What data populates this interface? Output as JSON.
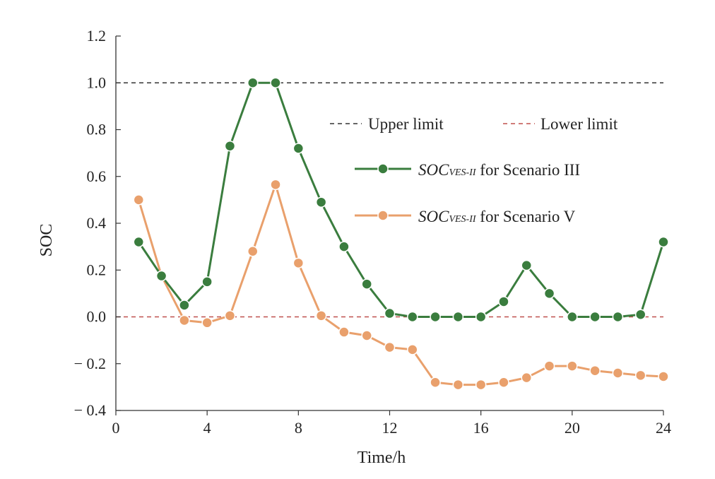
{
  "chart_data": {
    "type": "line",
    "xlabel": "Time/h",
    "ylabel": "SOC",
    "xlim": [
      0,
      24
    ],
    "ylim": [
      -0.4,
      1.2
    ],
    "xticks": [
      0,
      4,
      8,
      12,
      16,
      20,
      24
    ],
    "yticks": [
      -0.4,
      -0.2,
      0.0,
      0.2,
      0.4,
      0.6,
      0.8,
      1.0,
      1.2
    ],
    "xtick_labels": [
      "0",
      "4",
      "8",
      "12",
      "16",
      "20",
      "24"
    ],
    "ytick_labels": [
      "− 0.4",
      "− 0.2",
      "0.0",
      "0.2",
      "0.4",
      "0.6",
      "0.8",
      "1.0",
      "1.2"
    ],
    "grid": false,
    "legend_position": "upper-right",
    "x": [
      1,
      2,
      3,
      4,
      5,
      6,
      7,
      8,
      9,
      10,
      11,
      12,
      13,
      14,
      15,
      16,
      17,
      18,
      19,
      20,
      21,
      22,
      23,
      24
    ],
    "reference_lines": [
      {
        "name": "Upper limit",
        "y": 1.0,
        "color": "#333333"
      },
      {
        "name": "Lower limit",
        "y": 0.0,
        "color": "#c0504d"
      }
    ],
    "series": [
      {
        "name_italic": "SOC",
        "name_sub": "VES-II",
        "name_rest": " for Scenario III",
        "color": "#3a7d3e",
        "values": [
          0.32,
          0.175,
          0.05,
          0.15,
          0.73,
          1.0,
          1.0,
          0.72,
          0.49,
          0.3,
          0.14,
          0.015,
          0.0,
          0.0,
          0.0,
          0.0,
          0.065,
          0.22,
          0.1,
          0.0,
          0.0,
          0.0,
          0.01,
          0.32
        ]
      },
      {
        "name_italic": "SOC",
        "name_sub": "VES-II",
        "name_rest": " for Scenario V",
        "color": "#e9a06c",
        "values": [
          0.5,
          0.175,
          -0.015,
          -0.025,
          0.005,
          0.28,
          0.565,
          0.23,
          0.005,
          -0.065,
          -0.08,
          -0.13,
          -0.14,
          -0.28,
          -0.29,
          -0.29,
          -0.28,
          -0.26,
          -0.21,
          -0.21,
          -0.23,
          -0.24,
          -0.25,
          -0.255
        ]
      }
    ]
  }
}
